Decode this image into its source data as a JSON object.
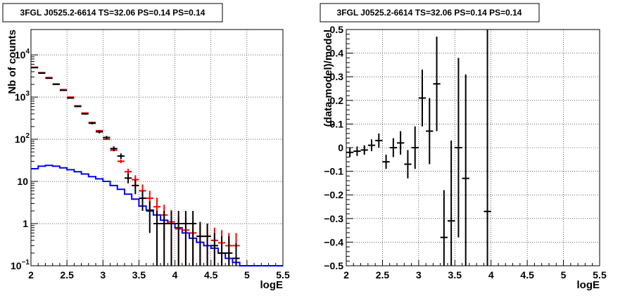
{
  "chart_data": [
    {
      "type": "histogram",
      "title": "3FGL J0525.2-6614 TS=32.06 PS=0.14 PS=0.14",
      "xlabel": "logE",
      "ylabel": "Nb of counts",
      "xlim": [
        2,
        5.5
      ],
      "ylim": [
        0.1,
        40000
      ],
      "yscale": "log",
      "grid": true,
      "x_ticks": [
        "2",
        "2.5",
        "3",
        "3.5",
        "4",
        "4.5",
        "5",
        "5.5"
      ],
      "y_ticks": [
        "10^-1",
        "1",
        "10",
        "10^2",
        "10^3",
        "10^4"
      ],
      "colors": {
        "data": "#000000",
        "model": "#ff0000",
        "source": "#0000ff"
      },
      "series": [
        {
          "role": "data",
          "style": "errorbar",
          "x": [
            2.05,
            2.15,
            2.25,
            2.35,
            2.45,
            2.55,
            2.65,
            2.75,
            2.85,
            2.95,
            3.05,
            3.15,
            3.25,
            3.35,
            3.45,
            3.55,
            3.65,
            3.75,
            3.85,
            3.95,
            4.05,
            4.15,
            4.25,
            4.35,
            4.45,
            4.55,
            4.65,
            4.75,
            4.85
          ],
          "y": [
            5000,
            3700,
            2800,
            2000,
            1450,
            950,
            600,
            400,
            240,
            150,
            110,
            60,
            40,
            12,
            8,
            4,
            2,
            1,
            1,
            1,
            1,
            1,
            1,
            0.5,
            0.5,
            0.3,
            0.2,
            0.2,
            0.15
          ],
          "yerr_low": [
            70,
            60,
            52,
            44,
            38,
            30,
            24,
            20,
            15,
            12,
            10,
            8,
            6,
            3,
            3,
            2,
            1.4,
            0.9,
            0.9,
            0.9,
            0.9,
            0.9,
            0.9,
            0.45,
            0.45,
            0.27,
            0.18,
            0.18,
            0.13
          ],
          "yerr_high": [
            70,
            60,
            52,
            44,
            38,
            30,
            24,
            20,
            15,
            12,
            10,
            8,
            6,
            3.5,
            3,
            2,
            1.4,
            1,
            1,
            1,
            1,
            1,
            1,
            0.6,
            0.5,
            0.3,
            0.3,
            0.3,
            0.2
          ]
        },
        {
          "role": "model",
          "style": "errorbar",
          "x": [
            2.05,
            2.15,
            2.25,
            2.35,
            2.45,
            2.55,
            2.65,
            2.75,
            2.85,
            2.95,
            3.05,
            3.15,
            3.25,
            3.35,
            3.45,
            3.55,
            3.65,
            3.75,
            3.85,
            3.95,
            4.05,
            4.15,
            4.25,
            4.35,
            4.45,
            4.55,
            4.65,
            4.75,
            4.85
          ],
          "y": [
            5100,
            3800,
            2900,
            2050,
            1500,
            1000,
            620,
            420,
            250,
            160,
            100,
            55,
            30,
            17,
            11,
            6,
            4,
            2.5,
            1.6,
            1.1,
            0.75,
            0.7,
            0.6,
            0.5,
            0.5,
            0.4,
            0.35,
            0.3,
            0.3
          ],
          "yerr_low": [
            0,
            0,
            0,
            0,
            0,
            0,
            0,
            0,
            0,
            0,
            0,
            3,
            3,
            3,
            3,
            2.5,
            2,
            1.6,
            1.2,
            1,
            0.7,
            0.65,
            0.55,
            0.47,
            0.46,
            0.38,
            0.32,
            0.28,
            0.28
          ],
          "yerr_high": [
            0,
            0,
            0,
            0,
            0,
            0,
            0,
            0,
            0,
            0,
            0,
            3,
            3,
            3,
            3,
            2.5,
            2,
            1.6,
            1.2,
            1,
            0.7,
            0.65,
            0.55,
            0.5,
            0.5,
            0.4,
            0.35,
            0.3,
            0.3
          ]
        },
        {
          "role": "source",
          "style": "step",
          "edges": [
            2.0,
            2.1,
            2.2,
            2.3,
            2.4,
            2.5,
            2.6,
            2.7,
            2.8,
            2.9,
            3.0,
            3.1,
            3.2,
            3.3,
            3.4,
            3.5,
            3.6,
            3.7,
            3.8,
            3.9,
            4.0,
            4.1,
            4.2,
            4.3,
            4.4,
            4.5,
            4.6,
            4.7,
            4.8,
            4.9,
            5.0,
            5.1,
            5.2,
            5.3,
            5.4,
            5.5
          ],
          "y": [
            20,
            23,
            24,
            23,
            21,
            19,
            17,
            15,
            13,
            11.5,
            10,
            8,
            6.5,
            5,
            3.8,
            2.6,
            2.1,
            1.6,
            1.2,
            1.0,
            0.8,
            0.6,
            0.45,
            0.36,
            0.3,
            0.26,
            0.2,
            0.15,
            0.12,
            0.1,
            0.1,
            0.1,
            0.1,
            0.1,
            0.1
          ]
        }
      ]
    },
    {
      "type": "scatter",
      "title": "3FGL J0525.2-6614 TS=32.06 PS=0.14 PS=0.14",
      "xlabel": "logE",
      "ylabel": "(data-model)/model",
      "xlim": [
        2,
        5.5
      ],
      "ylim": [
        -0.5,
        0.5
      ],
      "grid": true,
      "x_ticks": [
        "2",
        "2.5",
        "3",
        "3.5",
        "4",
        "4.5",
        "5",
        "5.5"
      ],
      "y_ticks": [
        "−0.5",
        "−0.4",
        "−0.3",
        "−0.2",
        "−0.1",
        "0",
        "0.1",
        "0.2",
        "0.3",
        "0.4",
        "0.5"
      ],
      "colors": {
        "points": "#000000"
      },
      "series": [
        {
          "style": "errorbar",
          "x": [
            2.05,
            2.15,
            2.25,
            2.35,
            2.45,
            2.55,
            2.65,
            2.75,
            2.85,
            2.95,
            3.05,
            3.15,
            3.25,
            3.35,
            3.45,
            3.55,
            3.65,
            3.95
          ],
          "y": [
            -0.02,
            -0.015,
            -0.01,
            0.01,
            0.03,
            -0.06,
            0.0,
            0.02,
            -0.07,
            0.0,
            0.21,
            0.07,
            0.27,
            -0.38,
            -0.31,
            0.0,
            -0.13,
            -0.27
          ],
          "yerr": [
            0.02,
            0.02,
            0.02,
            0.025,
            0.03,
            0.03,
            0.04,
            0.05,
            0.06,
            0.09,
            0.12,
            0.14,
            0.2,
            0.2,
            0.34,
            0.38,
            0.44,
            0.8
          ],
          "xerr": 0.05
        }
      ]
    }
  ]
}
